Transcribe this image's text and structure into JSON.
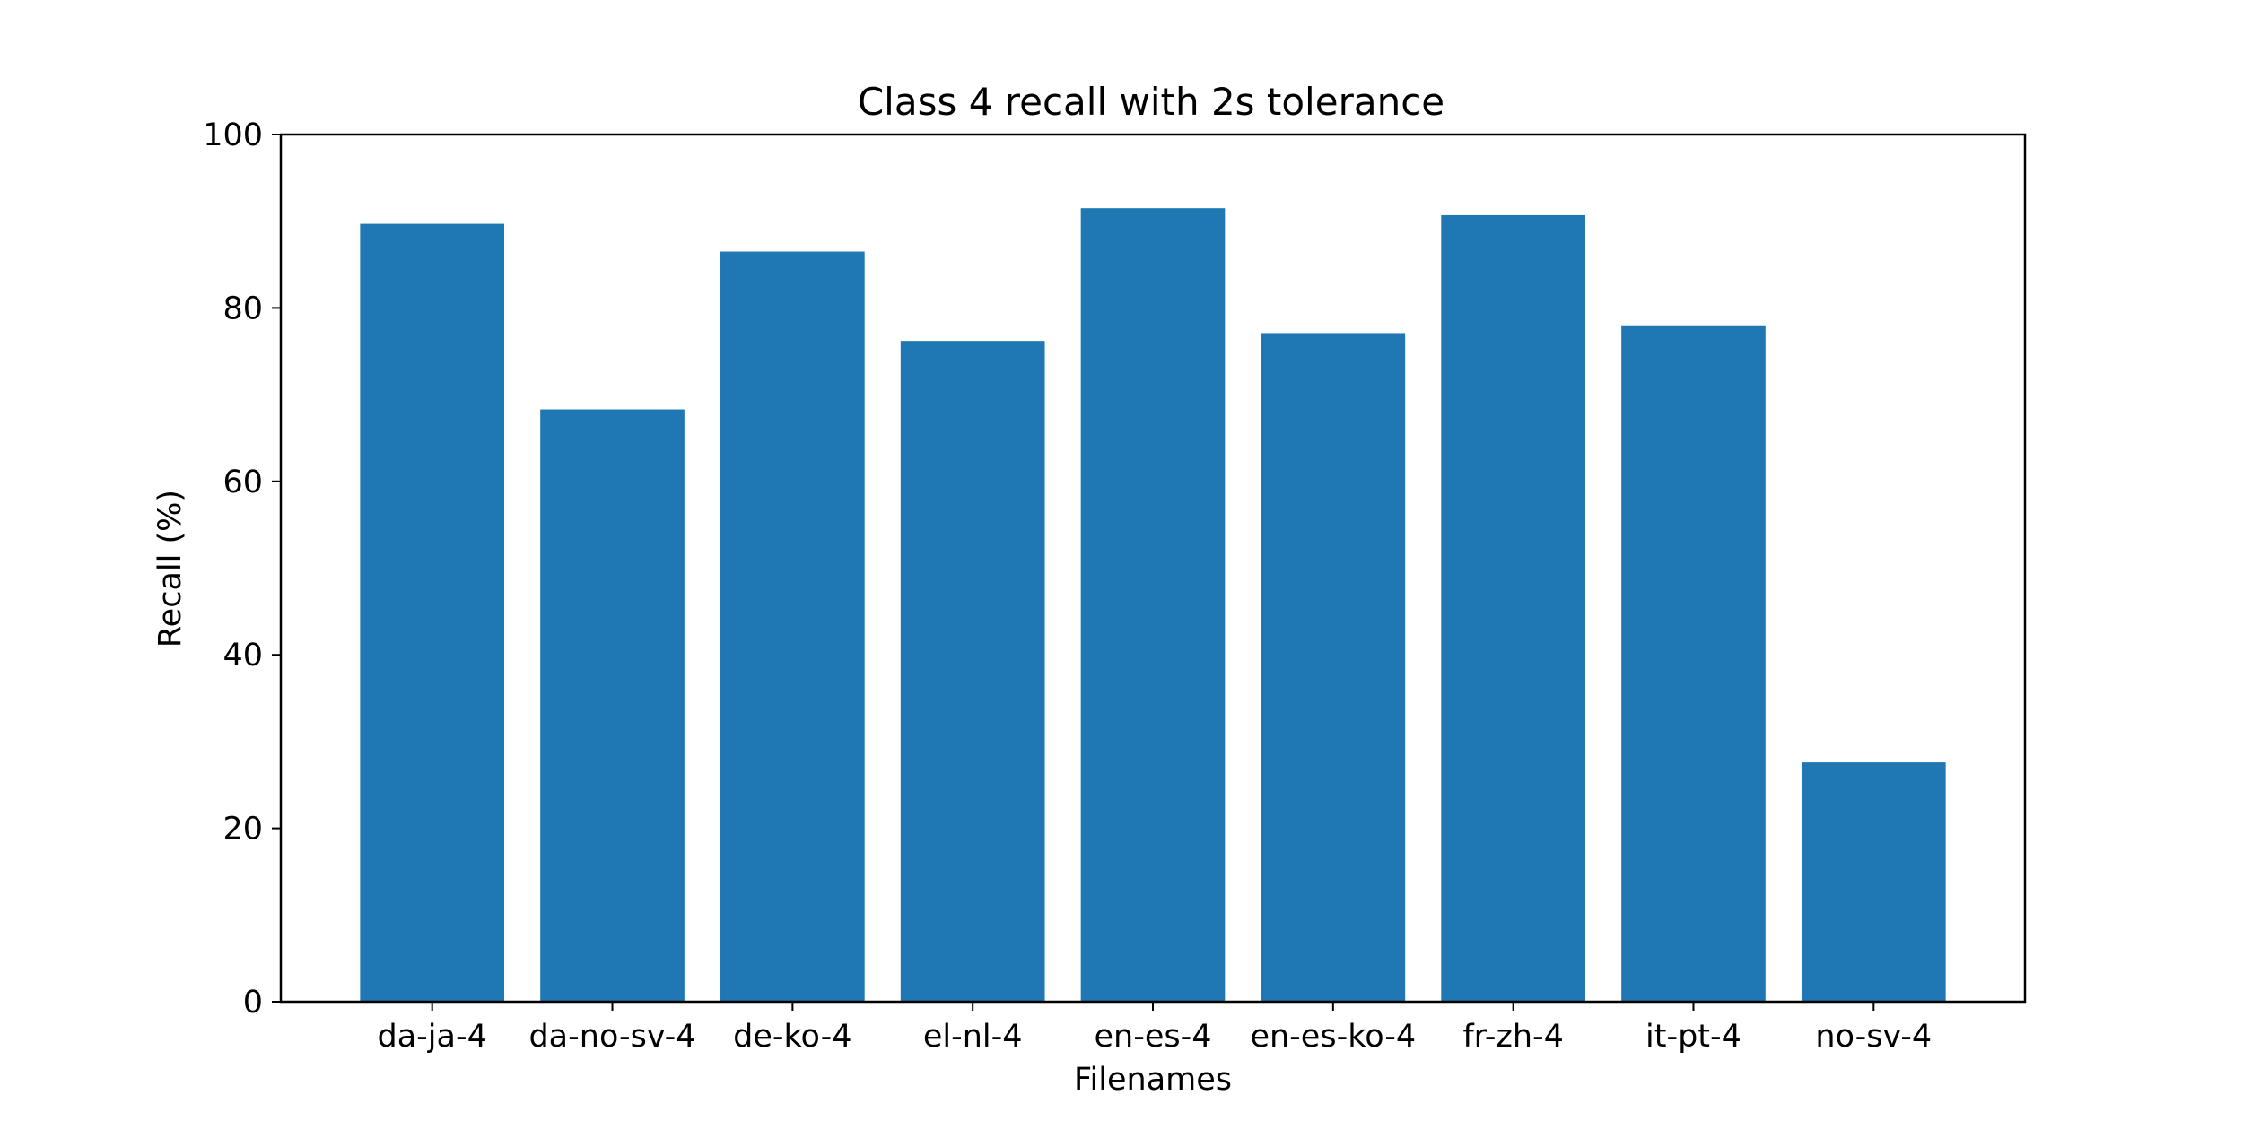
{
  "chart_data": {
    "type": "bar",
    "title": "Class 4 recall with 2s tolerance",
    "xlabel": "Filenames",
    "ylabel": "Recall (%)",
    "categories": [
      "da-ja-4",
      "da-no-sv-4",
      "de-ko-4",
      "el-nl-4",
      "en-es-4",
      "en-es-ko-4",
      "fr-zh-4",
      "it-pt-4",
      "no-sv-4"
    ],
    "values": [
      89.7,
      68.3,
      86.5,
      76.2,
      91.5,
      77.1,
      90.7,
      78.0,
      27.6
    ],
    "ylim": [
      0,
      100
    ],
    "yticks": [
      0,
      20,
      40,
      60,
      80,
      100
    ],
    "grid": false,
    "bar_color": "#1f77b4"
  }
}
